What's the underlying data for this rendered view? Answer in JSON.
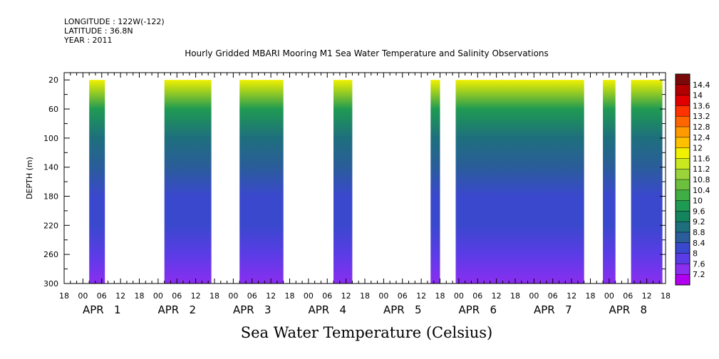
{
  "header": {
    "longitude": "LONGITUDE : 122W(-122)",
    "latitude": "LATITUDE : 36.8N",
    "year": "YEAR : 2011"
  },
  "footer": {
    "text": "Sea Water Temperature (Celsius)"
  },
  "chart_data": {
    "type": "heatmap",
    "title": "Hourly Gridded MBARI Mooring M1 Sea Water Temperature and Salinity Observations",
    "ylabel": "DEPTH (m)",
    "xlabel": "",
    "y_axis": {
      "reversed": true,
      "range": [
        300,
        10
      ],
      "ticks": [
        20,
        60,
        100,
        140,
        180,
        220,
        260,
        300
      ]
    },
    "x_axis": {
      "unit": "hours since APR 1 00:00, 2011",
      "range": [
        -6,
        186
      ],
      "hour_tick_labels": [
        "18",
        "00",
        "06",
        "12",
        "18",
        "00",
        "06",
        "12",
        "18",
        "00",
        "06",
        "12",
        "18",
        "00",
        "06",
        "12",
        "18",
        "00",
        "06",
        "12",
        "18",
        "00",
        "06",
        "12",
        "18",
        "00",
        "06",
        "12",
        "18",
        "00",
        "06",
        "12",
        "18"
      ],
      "day_labels": [
        {
          "label": "APR 1",
          "day": 1
        },
        {
          "label": "APR 2",
          "day": 2
        },
        {
          "label": "APR 3",
          "day": 3
        },
        {
          "label": "APR 4",
          "day": 4
        },
        {
          "label": "APR 5",
          "day": 5
        },
        {
          "label": "APR 6",
          "day": 6
        },
        {
          "label": "APR 7",
          "day": 7
        },
        {
          "label": "APR 8",
          "day": 8
        }
      ]
    },
    "data_segments": [
      {
        "start_hour": 2,
        "end_hour": 7
      },
      {
        "start_hour": 26,
        "end_hour": 41
      },
      {
        "start_hour": 50,
        "end_hour": 64
      },
      {
        "start_hour": 80,
        "end_hour": 86
      },
      {
        "start_hour": 111,
        "end_hour": 114
      },
      {
        "start_hour": 119,
        "end_hour": 160
      },
      {
        "start_hour": 166,
        "end_hour": 170
      },
      {
        "start_hour": 175,
        "end_hour": 185
      }
    ],
    "depth_profile": {
      "depths": [
        20,
        60,
        100,
        140,
        180,
        220,
        260,
        300
      ],
      "temperatures": [
        11.8,
        9.8,
        9.0,
        8.7,
        8.4,
        8.1,
        7.8,
        7.3
      ]
    },
    "colorbar": {
      "levels": [
        "14.4",
        "14",
        "13.6",
        "13.2",
        "12.8",
        "12.4",
        "12",
        "11.6",
        "11.2",
        "10.8",
        "10.4",
        "10",
        "9.6",
        "9.2",
        "8.8",
        "8.4",
        "8",
        "7.6",
        "7.2"
      ],
      "colors": [
        "#7a0a0a",
        "#b00000",
        "#e00000",
        "#ff3300",
        "#ff6600",
        "#ff9a00",
        "#ffc000",
        "#f0f000",
        "#c9e81f",
        "#9ad43a",
        "#6cc03e",
        "#3fae44",
        "#1f9a52",
        "#14845e",
        "#1e6f7d",
        "#2a5d9a",
        "#3a48cd",
        "#5a3ce6",
        "#8a2ef0",
        "#b100f0"
      ]
    }
  }
}
